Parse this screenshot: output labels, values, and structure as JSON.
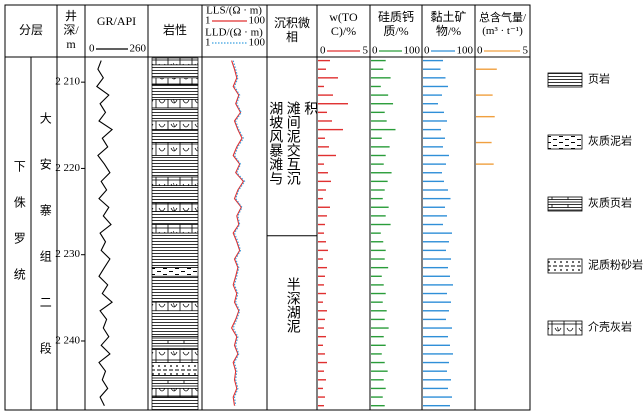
{
  "header": {
    "strat": "分层",
    "depth": "井深/m",
    "gr": "GR/API",
    "lith": "岩性",
    "facies": "沉积微相",
    "toc": "w(TOC)/%",
    "silica": "硅质钙质/%",
    "clay": "黏土矿物/%",
    "gas": "总含气量/(m³ · t⁻¹)"
  },
  "strat": {
    "system": "下侏罗统",
    "member": "大安寨组二段"
  },
  "depth": {
    "ylim": [
      2207.2,
      2248
    ],
    "yticks": [
      {
        "value": 2210,
        "label": "2 210"
      },
      {
        "value": 2220,
        "label": "2 220"
      },
      {
        "value": 2230,
        "label": "2 230"
      },
      {
        "value": 2240,
        "label": "2 240"
      }
    ]
  },
  "facies": [
    {
      "label": "湖坡风暴滩与滩间泥交互沉积",
      "top": 2207.2,
      "bottom": 2227.8
    },
    {
      "label": "半深湖泥",
      "top": 2227.8,
      "bottom": 2248
    }
  ],
  "log_depths": [
    2207.5,
    2208.5,
    2209.5,
    2210.5,
    2211.5,
    2212.5,
    2213.5,
    2214.5,
    2215.5,
    2216.5,
    2217.5,
    2218.5,
    2219.5,
    2220.5,
    2221.5,
    2222.5,
    2223.5,
    2224.5,
    2225.5,
    2226.5,
    2227.5,
    2228.5,
    2229.5,
    2230.5,
    2231.5,
    2232.5,
    2233.5,
    2234.5,
    2235.5,
    2236.5,
    2237.5,
    2238.5,
    2239.5,
    2240.5,
    2241.5,
    2242.5,
    2243.5,
    2244.5,
    2245.5,
    2246.5,
    2247.5
  ],
  "gr": {
    "color": "#000000",
    "xlim": [
      0,
      260
    ],
    "values": [
      60,
      45,
      70,
      40,
      95,
      55,
      80,
      50,
      110,
      65,
      90,
      45,
      75,
      100,
      60,
      85,
      50,
      95,
      70,
      105,
      55,
      80,
      60,
      100,
      75,
      50,
      90,
      65,
      110,
      55,
      85,
      70,
      95,
      60,
      100,
      50,
      80,
      65,
      90,
      55,
      75
    ]
  },
  "resistivity": {
    "xlim": [
      1,
      100
    ],
    "log": true,
    "series": [
      {
        "name": "LLS/(Ω · m)",
        "color": "#e03030",
        "dash": false,
        "values": [
          8,
          10,
          12,
          9,
          14,
          11,
          16,
          10,
          13,
          18,
          12,
          9,
          15,
          11,
          20,
          13,
          10,
          17,
          12,
          14,
          9,
          12,
          15,
          10,
          13,
          11,
          9,
          12,
          10,
          14,
          11,
          8,
          12,
          10,
          13,
          9,
          11,
          10,
          12,
          9,
          10
        ]
      },
      {
        "name": "LLD/(Ω · m)",
        "color": "#3aa0e0",
        "dash": true,
        "values": [
          9,
          11,
          13,
          10,
          15,
          12,
          17,
          11,
          14,
          20,
          13,
          10,
          16,
          12,
          22,
          14,
          11,
          18,
          13,
          15,
          10,
          13,
          16,
          11,
          14,
          12,
          10,
          13,
          11,
          15,
          12,
          9,
          13,
          11,
          14,
          10,
          12,
          11,
          13,
          10,
          11
        ]
      }
    ]
  },
  "toc": {
    "color": "#e03030",
    "xlim": [
      0,
      5
    ],
    "values": [
      1.2,
      0.8,
      2.0,
      0.6,
      1.5,
      3.0,
      0.9,
      1.4,
      2.5,
      0.7,
      1.1,
      1.8,
      0.6,
      1.0,
      1.3,
      0.8,
      0.5,
      1.2,
      0.9,
      0.7,
      0.6,
      0.8,
      1.0,
      0.5,
      0.9,
      0.7,
      0.6,
      0.8,
      0.5,
      0.9,
      0.7,
      0.6,
      0.8,
      0.5,
      0.7,
      0.9,
      0.6,
      0.8,
      0.5,
      0.7,
      0.6
    ]
  },
  "silica": {
    "color": "#2a9d3a",
    "xlim": [
      0,
      100
    ],
    "values": [
      30,
      25,
      40,
      20,
      35,
      45,
      28,
      32,
      50,
      22,
      38,
      30,
      26,
      42,
      34,
      28,
      24,
      36,
      30,
      40,
      20,
      25,
      30,
      28,
      35,
      22,
      26,
      30,
      24,
      32,
      28,
      36,
      26,
      30,
      22,
      28,
      34,
      26,
      30,
      24,
      28
    ]
  },
  "clay": {
    "color": "#2f8fd8",
    "xlim": [
      0,
      100
    ],
    "values": [
      40,
      35,
      45,
      50,
      38,
      30,
      42,
      48,
      36,
      44,
      40,
      52,
      46,
      38,
      42,
      50,
      55,
      44,
      48,
      40,
      58,
      52,
      46,
      56,
      50,
      54,
      60,
      48,
      56,
      52,
      46,
      58,
      50,
      54,
      60,
      52,
      48,
      56,
      50,
      58,
      54
    ]
  },
  "gas": {
    "color": "#f0a040",
    "xlim": [
      0,
      5
    ],
    "depths": [
      2208.5,
      2211.5,
      2214,
      2217,
      2219.5
    ],
    "values": [
      2.0,
      1.6,
      1.8,
      1.5,
      1.7
    ]
  },
  "lithology": {
    "legend": [
      "页岩",
      "灰质泥岩",
      "灰质页岩",
      "泥质粉砂岩",
      "介壳灰岩"
    ],
    "intervals": [
      {
        "top": 2207.2,
        "bottom": 2208.0,
        "type": 4
      },
      {
        "top": 2208.0,
        "bottom": 2209.5,
        "type": 0
      },
      {
        "top": 2209.5,
        "bottom": 2210.3,
        "type": 4
      },
      {
        "top": 2210.3,
        "bottom": 2212.0,
        "type": 0
      },
      {
        "top": 2212.0,
        "bottom": 2213.0,
        "type": 4
      },
      {
        "top": 2213.0,
        "bottom": 2214.5,
        "type": 0
      },
      {
        "top": 2214.5,
        "bottom": 2215.5,
        "type": 4
      },
      {
        "top": 2215.5,
        "bottom": 2217.0,
        "type": 0
      },
      {
        "top": 2217.0,
        "bottom": 2218.5,
        "type": 4
      },
      {
        "top": 2218.5,
        "bottom": 2221.0,
        "type": 0
      },
      {
        "top": 2221.0,
        "bottom": 2222.0,
        "type": 4
      },
      {
        "top": 2222.0,
        "bottom": 2224.0,
        "type": 0
      },
      {
        "top": 2224.0,
        "bottom": 2225.0,
        "type": 4
      },
      {
        "top": 2225.0,
        "bottom": 2226.5,
        "type": 0
      },
      {
        "top": 2226.5,
        "bottom": 2227.5,
        "type": 4
      },
      {
        "top": 2227.5,
        "bottom": 2231.5,
        "type": 0
      },
      {
        "top": 2231.5,
        "bottom": 2232.5,
        "type": 1
      },
      {
        "top": 2232.5,
        "bottom": 2235.5,
        "type": 0
      },
      {
        "top": 2235.5,
        "bottom": 2236.5,
        "type": 4
      },
      {
        "top": 2236.5,
        "bottom": 2239.5,
        "type": 0
      },
      {
        "top": 2239.5,
        "bottom": 2241.0,
        "type": 2
      },
      {
        "top": 2241.0,
        "bottom": 2242.5,
        "type": 4
      },
      {
        "top": 2242.5,
        "bottom": 2244.0,
        "type": 3
      },
      {
        "top": 2244.0,
        "bottom": 2245.5,
        "type": 2
      },
      {
        "top": 2245.5,
        "bottom": 2246.5,
        "type": 4
      },
      {
        "top": 2246.5,
        "bottom": 2248.0,
        "type": 0
      }
    ]
  }
}
